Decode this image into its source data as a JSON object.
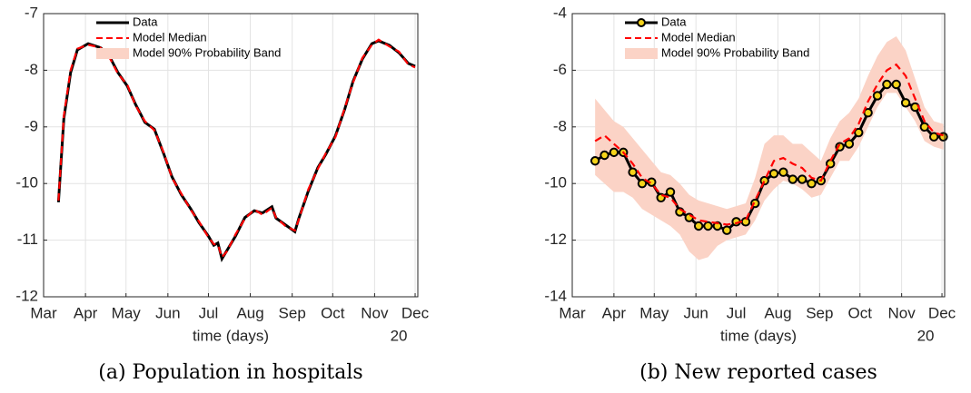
{
  "chart_data": [
    {
      "type": "line",
      "caption": "(a) Population in hospitals",
      "xlabel": "time (days)",
      "year_label": "20",
      "xlim": [
        0,
        277
      ],
      "xticks": [
        {
          "value": 0,
          "label": "Mar"
        },
        {
          "value": 31,
          "label": "Apr"
        },
        {
          "value": 61,
          "label": "May"
        },
        {
          "value": 92,
          "label": "Jun"
        },
        {
          "value": 122,
          "label": "Jul"
        },
        {
          "value": 153,
          "label": "Aug"
        },
        {
          "value": 184,
          "label": "Sep"
        },
        {
          "value": 214,
          "label": "Oct"
        },
        {
          "value": 245,
          "label": "Nov"
        },
        {
          "value": 275,
          "label": "Dec"
        }
      ],
      "ylim": [
        -12,
        -7
      ],
      "yticks": [
        -12,
        -11,
        -10,
        -9,
        -8,
        -7
      ],
      "grid": true,
      "x": [
        11,
        15,
        20,
        25,
        33,
        42,
        48,
        55,
        62,
        68,
        75,
        82,
        89,
        95,
        102,
        109,
        115,
        122,
        126,
        129,
        132,
        136,
        142,
        149,
        156,
        162,
        169,
        172,
        179,
        186,
        189,
        196,
        203,
        209,
        216,
        223,
        229,
        236,
        243,
        248,
        256,
        263,
        270,
        275
      ],
      "series": [
        {
          "name": "Data",
          "color": "#000000",
          "values": [
            -10.33,
            -8.85,
            -8.04,
            -7.64,
            -7.53,
            -7.6,
            -7.72,
            -8.04,
            -8.28,
            -8.6,
            -8.92,
            -9.04,
            -9.48,
            -9.88,
            -10.2,
            -10.45,
            -10.69,
            -10.93,
            -11.09,
            -11.05,
            -11.33,
            -11.17,
            -10.93,
            -10.6,
            -10.48,
            -10.52,
            -10.41,
            -10.61,
            -10.73,
            -10.85,
            -10.61,
            -10.13,
            -9.72,
            -9.48,
            -9.16,
            -8.68,
            -8.2,
            -7.8,
            -7.53,
            -7.48,
            -7.56,
            -7.69,
            -7.88,
            -7.93
          ]
        },
        {
          "name": "Model Median",
          "color": "#ff0000",
          "dashed": true,
          "values": [
            -10.3,
            -8.8,
            -8.0,
            -7.62,
            -7.55,
            -7.6,
            -7.74,
            -8.06,
            -8.26,
            -8.62,
            -8.9,
            -9.06,
            -9.46,
            -9.9,
            -10.18,
            -10.47,
            -10.67,
            -10.95,
            -11.07,
            -11.08,
            -11.3,
            -11.19,
            -10.9,
            -10.62,
            -10.46,
            -10.55,
            -10.43,
            -10.6,
            -10.75,
            -10.83,
            -10.63,
            -10.1,
            -9.74,
            -9.46,
            -9.18,
            -8.66,
            -8.22,
            -7.78,
            -7.55,
            -7.46,
            -7.58,
            -7.67,
            -7.9,
            -7.95
          ]
        }
      ],
      "band": {
        "name": "Model 90% Probability Band",
        "color": "#fbd3c6"
      }
    },
    {
      "type": "line",
      "caption": "(b) New reported cases",
      "xlabel": "time (days)",
      "year_label": "20",
      "xlim": [
        0,
        277
      ],
      "xticks": [
        {
          "value": 0,
          "label": "Mar"
        },
        {
          "value": 31,
          "label": "Apr"
        },
        {
          "value": 61,
          "label": "May"
        },
        {
          "value": 92,
          "label": "Jun"
        },
        {
          "value": 122,
          "label": "Jul"
        },
        {
          "value": 153,
          "label": "Aug"
        },
        {
          "value": 184,
          "label": "Sep"
        },
        {
          "value": 214,
          "label": "Oct"
        },
        {
          "value": 245,
          "label": "Nov"
        },
        {
          "value": 275,
          "label": "Dec"
        }
      ],
      "ylim": [
        -14,
        -4
      ],
      "yticks": [
        -14,
        -12,
        -10,
        -8,
        -6,
        -4
      ],
      "grid": true,
      "x": [
        17,
        24,
        31,
        38,
        45,
        52,
        59,
        66,
        73,
        80,
        87,
        94,
        101,
        108,
        115,
        122,
        129,
        136,
        143,
        150,
        157,
        164,
        171,
        178,
        185,
        192,
        199,
        206,
        213,
        220,
        227,
        234,
        241,
        248,
        255,
        262,
        269,
        276
      ],
      "series": [
        {
          "name": "Data",
          "color": "#000000",
          "marker": "circle",
          "marker_color": "#f5d31a",
          "values": [
            -9.2,
            -9.0,
            -8.9,
            -8.9,
            -9.6,
            -10.0,
            -9.95,
            -10.5,
            -10.3,
            -11.0,
            -11.2,
            -11.5,
            -11.5,
            -11.5,
            -11.65,
            -11.35,
            -11.35,
            -10.7,
            -9.9,
            -9.65,
            -9.6,
            -9.85,
            -9.85,
            -10.0,
            -9.9,
            -9.3,
            -8.7,
            -8.6,
            -8.2,
            -7.5,
            -6.9,
            -6.5,
            -6.5,
            -7.15,
            -7.3,
            -8.0,
            -8.35,
            -8.35
          ]
        },
        {
          "name": "Model Median",
          "color": "#ff0000",
          "dashed": true,
          "values": [
            -8.5,
            -8.3,
            -8.6,
            -8.9,
            -9.3,
            -9.8,
            -10.0,
            -10.4,
            -10.5,
            -10.9,
            -11.1,
            -11.3,
            -11.35,
            -11.4,
            -11.45,
            -11.4,
            -11.3,
            -10.6,
            -9.9,
            -9.2,
            -9.1,
            -9.3,
            -9.45,
            -9.8,
            -9.9,
            -9.2,
            -8.6,
            -8.4,
            -7.9,
            -7.1,
            -6.5,
            -6.0,
            -5.8,
            -6.2,
            -7.0,
            -7.8,
            -8.2,
            -8.3
          ]
        }
      ],
      "band": {
        "name": "Model 90% Probability Band",
        "color": "#fbd3c6",
        "lower": [
          -9.7,
          -10.0,
          -10.3,
          -10.3,
          -10.5,
          -10.9,
          -11.1,
          -11.3,
          -11.5,
          -11.8,
          -12.4,
          -12.7,
          -12.6,
          -12.2,
          -12.0,
          -11.9,
          -11.8,
          -11.3,
          -10.6,
          -10.2,
          -9.9,
          -10.0,
          -10.2,
          -10.5,
          -10.4,
          -9.8,
          -9.2,
          -9.2,
          -8.7,
          -8.0,
          -7.3,
          -6.8,
          -6.8,
          -7.3,
          -7.8,
          -8.5,
          -8.7,
          -8.8
        ],
        "upper": [
          -7.0,
          -7.4,
          -7.8,
          -8.0,
          -8.4,
          -8.8,
          -9.2,
          -9.6,
          -9.7,
          -10.0,
          -10.4,
          -10.6,
          -10.7,
          -10.8,
          -10.9,
          -10.8,
          -10.7,
          -9.8,
          -8.6,
          -8.3,
          -8.3,
          -8.6,
          -8.6,
          -8.9,
          -9.2,
          -8.4,
          -7.8,
          -7.5,
          -7.0,
          -6.2,
          -5.5,
          -5.0,
          -4.8,
          -5.3,
          -6.3,
          -7.3,
          -7.8,
          -7.9
        ]
      }
    }
  ]
}
